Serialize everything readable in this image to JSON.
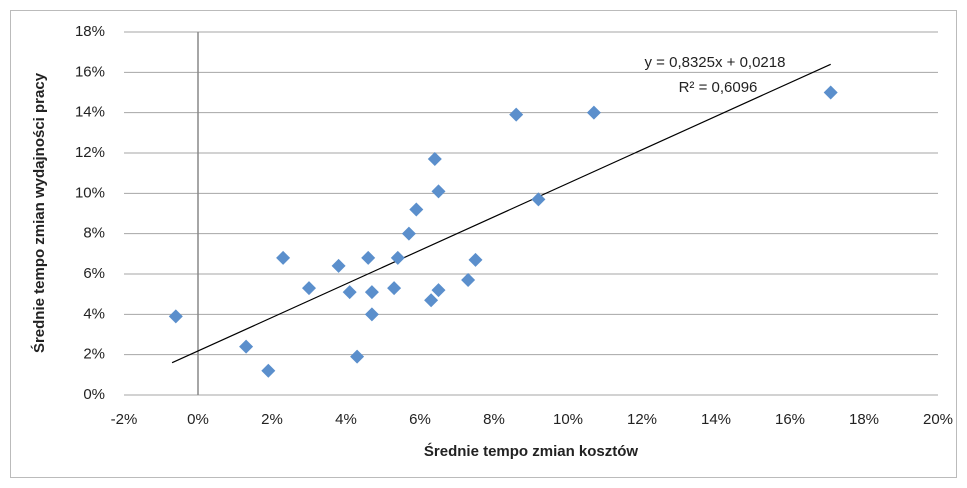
{
  "chart_data": {
    "type": "scatter",
    "x_label": "Średnie tempo zmian kosztów",
    "y_label": "Średnie tempo zmian wydajności pracy",
    "series": [
      {
        "color": "#5b8fcc",
        "x": [
          -0.6,
          1.3,
          1.9,
          2.3,
          3.0,
          3.8,
          4.1,
          4.3,
          4.6,
          4.7,
          4.7,
          5.3,
          5.4,
          5.7,
          5.9,
          6.3,
          6.4,
          6.5,
          6.5,
          7.3,
          7.5,
          8.6,
          9.2,
          10.7,
          17.1
        ],
        "values": [
          3.9,
          2.4,
          1.2,
          6.8,
          5.3,
          6.4,
          5.1,
          1.9,
          6.8,
          5.1,
          4.0,
          5.3,
          6.8,
          8.0,
          9.2,
          4.7,
          11.7,
          10.1,
          5.2,
          5.7,
          6.7,
          13.9,
          9.7,
          14.0,
          15.0
        ]
      }
    ],
    "trendline": {
      "x": [
        -0.7,
        17.1
      ],
      "values": [
        1.6,
        16.4
      ],
      "color": "#000000"
    },
    "annotations": [
      "y = 0,8325x + 0,0218",
      "R² = 0,6096"
    ],
    "xlim": [
      -2,
      20
    ],
    "xticks": [
      {
        "value": -2,
        "label": "-2%"
      },
      {
        "value": 0,
        "label": "0%"
      },
      {
        "value": 2,
        "label": "2%"
      },
      {
        "value": 4,
        "label": "4%"
      },
      {
        "value": 6,
        "label": "6%"
      },
      {
        "value": 8,
        "label": "8%"
      },
      {
        "value": 10,
        "label": "10%"
      },
      {
        "value": 12,
        "label": "12%"
      },
      {
        "value": 14,
        "label": "14%"
      },
      {
        "value": 16,
        "label": "16%"
      },
      {
        "value": 18,
        "label": "18%"
      },
      {
        "value": 20,
        "label": "20%"
      }
    ],
    "ylim": [
      0,
      18
    ],
    "yticks": [
      {
        "value": 0,
        "label": "0%"
      },
      {
        "value": 2,
        "label": "2%"
      },
      {
        "value": 4,
        "label": "4%"
      },
      {
        "value": 6,
        "label": "6%"
      },
      {
        "value": 8,
        "label": "8%"
      },
      {
        "value": 10,
        "label": "10%"
      },
      {
        "value": 12,
        "label": "12%"
      },
      {
        "value": 14,
        "label": "14%"
      },
      {
        "value": 16,
        "label": "16%"
      },
      {
        "value": 18,
        "label": "18%"
      }
    ],
    "grid": true
  }
}
